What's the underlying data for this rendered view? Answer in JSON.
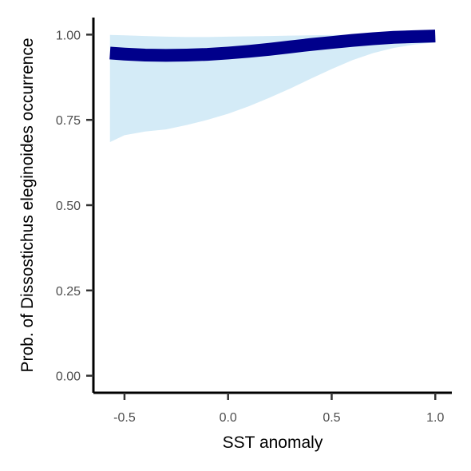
{
  "chart_data": {
    "type": "area",
    "xlabel": "SST anomaly",
    "ylabel": "Prob. of  Dissostichus eleginoides  occurrence",
    "xlim": [
      -0.65,
      1.08
    ],
    "ylim": [
      -0.05,
      1.05
    ],
    "x_ticks": [
      -0.5,
      0.0,
      0.5,
      1.0
    ],
    "x_tick_labels": [
      "-0.5",
      "0.0",
      "0.5",
      "1.0"
    ],
    "y_ticks": [
      0.0,
      0.25,
      0.5,
      0.75,
      1.0
    ],
    "y_tick_labels": [
      "0.00",
      "0.25",
      "0.50",
      "0.75",
      "1.00"
    ],
    "grid": false,
    "series": [
      {
        "kind": "fit",
        "color": "#00008B",
        "x": [
          -0.57,
          -0.5,
          -0.4,
          -0.3,
          -0.2,
          -0.1,
          0.0,
          0.1,
          0.2,
          0.3,
          0.4,
          0.5,
          0.6,
          0.7,
          0.8,
          0.9,
          1.0
        ],
        "y": [
          0.946,
          0.943,
          0.94,
          0.939,
          0.94,
          0.942,
          0.946,
          0.951,
          0.957,
          0.964,
          0.971,
          0.977,
          0.983,
          0.988,
          0.992,
          0.994,
          0.996
        ]
      },
      {
        "kind": "confidence-band",
        "color": "#D4EBF7",
        "x": [
          -0.57,
          -0.5,
          -0.4,
          -0.3,
          -0.2,
          -0.1,
          0.0,
          0.1,
          0.2,
          0.3,
          0.4,
          0.5,
          0.6,
          0.7,
          0.8,
          0.9,
          1.0
        ],
        "lower": [
          0.685,
          0.705,
          0.716,
          0.722,
          0.735,
          0.75,
          0.768,
          0.79,
          0.815,
          0.842,
          0.871,
          0.899,
          0.925,
          0.946,
          0.961,
          0.971,
          0.977
        ],
        "upper": [
          0.999,
          0.998,
          0.996,
          0.994,
          0.993,
          0.993,
          0.994,
          0.995,
          0.996,
          0.997,
          0.998,
          0.999,
          0.999,
          0.999,
          0.999,
          0.999,
          0.999
        ]
      }
    ]
  }
}
